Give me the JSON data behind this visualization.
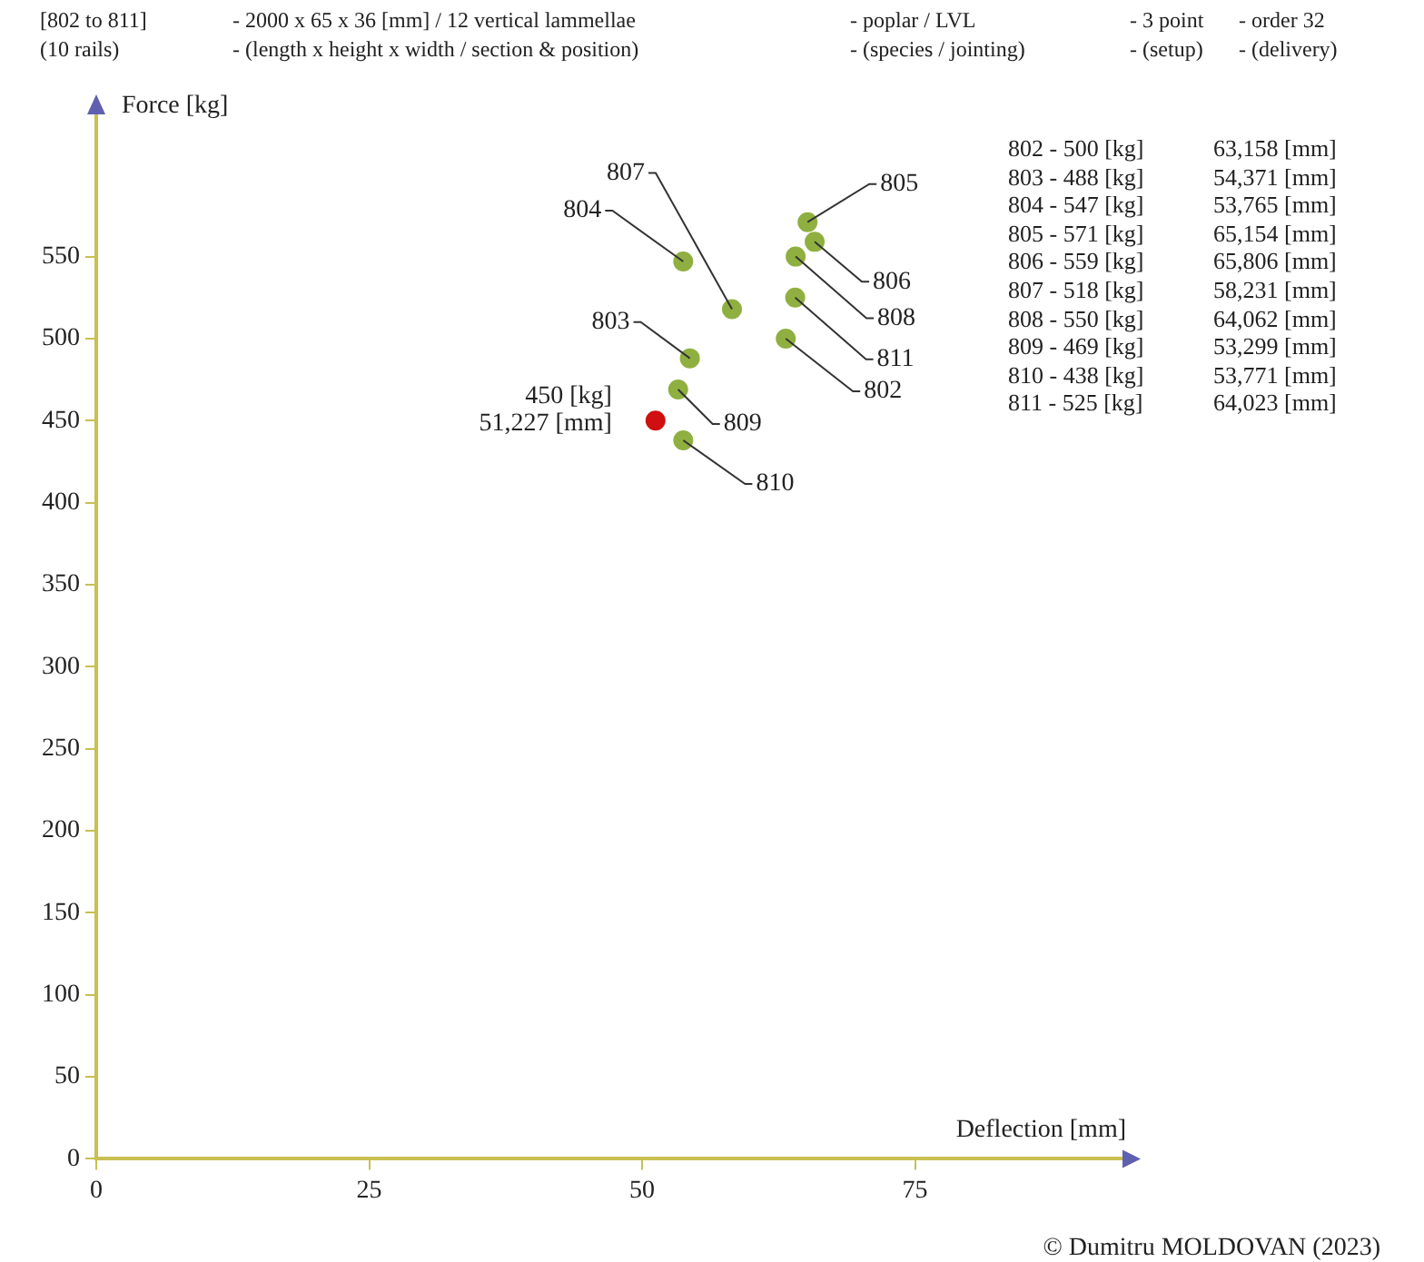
{
  "chart_data": {
    "type": "scatter",
    "xlabel": "Deflection [mm]",
    "ylabel": "Force [kg]",
    "xlim": [
      0,
      95
    ],
    "ylim": [
      0,
      640
    ],
    "xticks": [
      0,
      25,
      50,
      75
    ],
    "yticks": [
      0,
      50,
      100,
      150,
      200,
      250,
      300,
      350,
      400,
      450,
      500,
      550
    ],
    "grid": false,
    "legend": false,
    "marker": "circle",
    "series": [
      {
        "type": "scatter",
        "color": "#8fb040",
        "x": [
          63.158,
          54.371,
          53.765,
          65.154,
          65.806,
          58.231,
          64.062,
          53.299,
          53.771,
          64.023
        ],
        "values": [
          500,
          488,
          547,
          571,
          559,
          518,
          550,
          469,
          438,
          525
        ]
      },
      {
        "type": "scatter",
        "color": "#d01010",
        "x": [
          51.227
        ],
        "values": [
          450
        ]
      }
    ],
    "annotations": [
      "[802 to 811]",
      "(10 rails)",
      "- 2000 x 65 x 36 [mm] / 12 vertical lammellae",
      "- (length x height x width / section & position)",
      "- poplar / LVL",
      "- (species / jointing)",
      "- 3 point",
      "- (setup)",
      "- order 32",
      "- (delivery)",
      "802 - 500 [kg]",
      "63,158 [mm]",
      "803 - 488 [kg]",
      "54,371 [mm]",
      "804 - 547 [kg]",
      "53,765 [mm]",
      "805 - 571 [kg]",
      "65,154 [mm]",
      "806 - 559 [kg]",
      "65,806 [mm]",
      "807 - 518 [kg]",
      "58,231 [mm]",
      "808 - 550 [kg]",
      "64,062 [mm]",
      "809 - 469 [kg]",
      "53,299 [mm]",
      "810 - 438 [kg]",
      "53,771 [mm]",
      "811 - 525 [kg]",
      "64,023 [mm]",
      "© Dumitru MOLDOVAN (2023)",
      {
        "text": "802",
        "x": 63.158,
        "y": 500
      },
      {
        "text": "803",
        "x": 54.371,
        "y": 488
      },
      {
        "text": "804",
        "x": 53.765,
        "y": 547
      },
      {
        "text": "805",
        "x": 65.154,
        "y": 571
      },
      {
        "text": "806",
        "x": 65.806,
        "y": 559
      },
      {
        "text": "807",
        "x": 58.231,
        "y": 518
      },
      {
        "text": "808",
        "x": 64.062,
        "y": 550
      },
      {
        "text": "809",
        "x": 53.299,
        "y": 469
      },
      {
        "text": "810",
        "x": 53.771,
        "y": 438
      },
      {
        "text": "811",
        "x": 64.023,
        "y": 525
      },
      {
        "text": "450 [kg]\n51,227 [mm]",
        "x": 51.227,
        "y": 450
      }
    ]
  }
}
